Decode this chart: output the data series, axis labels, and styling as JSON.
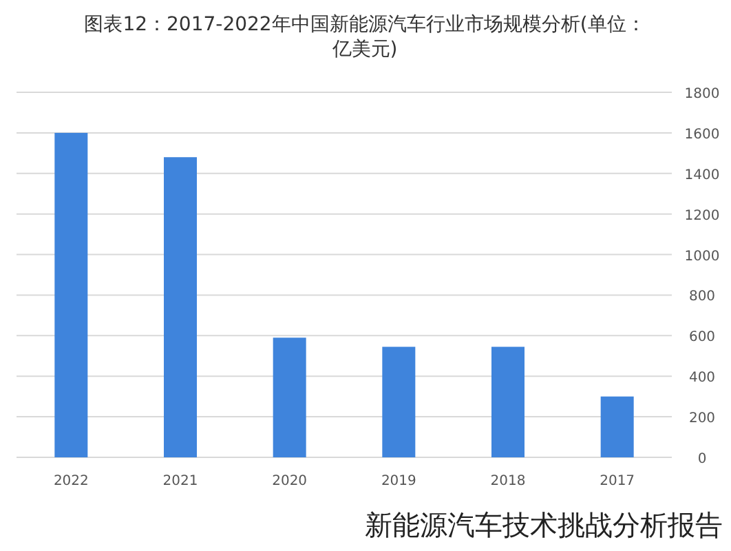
{
  "chart_data": {
    "type": "bar",
    "title": "图表12：2017-2022年中国新能源汽车行业市场规模分析(单位：亿美元)",
    "categories": [
      "2022",
      "2021",
      "2020",
      "2019",
      "2018",
      "2017"
    ],
    "values": [
      1600,
      1480,
      590,
      545,
      545,
      300
    ],
    "color": "#3f84dc",
    "ylim": [
      0,
      1800
    ],
    "yticks": [
      0,
      200,
      400,
      600,
      800,
      1000,
      1200,
      1400,
      1600,
      1800
    ],
    "grid": "y",
    "annotations": [
      "新能源汽车技术挑战分析报告"
    ]
  }
}
